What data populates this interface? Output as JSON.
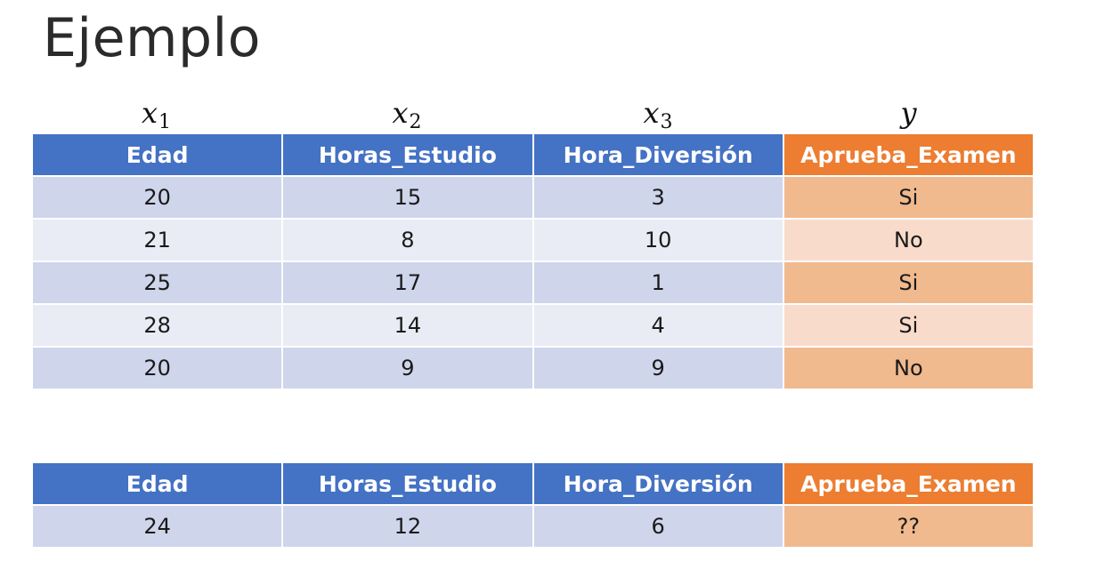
{
  "title": "Ejemplo",
  "variables": [
    {
      "symbol": "x",
      "subscript": "1"
    },
    {
      "symbol": "x",
      "subscript": "2"
    },
    {
      "symbol": "x",
      "subscript": "3"
    },
    {
      "symbol": "y",
      "subscript": ""
    }
  ],
  "headers": [
    "Edad",
    "Horas_Estudio",
    "Hora_Diversión",
    "Aprueba_Examen"
  ],
  "training_rows": [
    [
      "20",
      "15",
      "3",
      "Si"
    ],
    [
      "21",
      "8",
      "10",
      "No"
    ],
    [
      "25",
      "17",
      "1",
      "Si"
    ],
    [
      "28",
      "14",
      "4",
      "Si"
    ],
    [
      "20",
      "9",
      "9",
      "No"
    ]
  ],
  "query_rows": [
    [
      "24",
      "12",
      "6",
      "??"
    ]
  ],
  "colors": {
    "feature_header": "#4472c4",
    "target_header": "#ed7d31",
    "row_dark": "#cfd5ea",
    "row_light": "#e9ebf5",
    "target_dark": "#f0b98e",
    "target_light": "#f9dbcb"
  }
}
